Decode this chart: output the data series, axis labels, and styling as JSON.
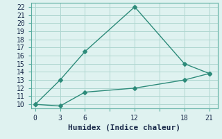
{
  "line1_x": [
    0,
    3,
    6,
    12,
    18,
    21
  ],
  "line1_y": [
    10,
    13,
    16.5,
    22,
    15,
    13.8
  ],
  "line2_x": [
    0,
    3,
    6,
    12,
    18,
    21
  ],
  "line2_y": [
    10,
    9.8,
    11.5,
    12,
    13,
    13.8
  ],
  "line_color": "#2d8b7a",
  "bg_color": "#dff2f0",
  "grid_color": "#aed6d0",
  "spine_color": "#5aada0",
  "xlabel": "Humidex (Indice chaleur)",
  "xlim": [
    -0.5,
    22
  ],
  "ylim": [
    9.5,
    22.5
  ],
  "xticks": [
    0,
    3,
    6,
    9,
    12,
    15,
    18,
    21
  ],
  "xtick_labels": [
    "0",
    "3",
    "6",
    "",
    "12",
    "",
    "18",
    "21"
  ],
  "yticks": [
    10,
    11,
    12,
    13,
    14,
    15,
    16,
    17,
    18,
    19,
    20,
    21,
    22
  ],
  "marker": "D",
  "marker_size": 3,
  "line_width": 1.0,
  "xlabel_fontsize": 8,
  "tick_fontsize": 7
}
